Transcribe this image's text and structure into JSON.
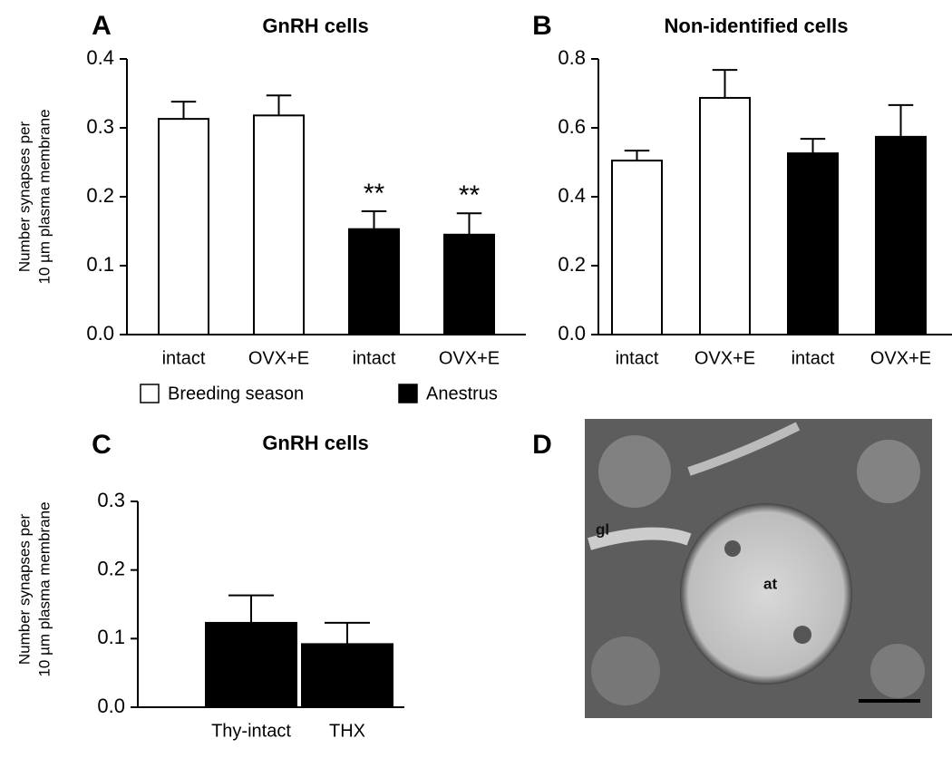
{
  "chart_data": [
    {
      "type": "bar",
      "panel_label": "A",
      "title": "GnRH cells",
      "y_label": [
        "Number synapses per",
        "10 µm plasma membrane"
      ],
      "categories": [
        "intact",
        "OVX+E",
        "intact",
        "OVX+E"
      ],
      "series": [
        {
          "name": "Breeding season",
          "color": "#ffffff",
          "values": [
            0.313,
            0.318,
            null,
            null
          ],
          "errors": [
            0.025,
            0.029,
            null,
            null
          ]
        },
        {
          "name": "Anestrus",
          "color": "#000000",
          "values": [
            null,
            null,
            0.153,
            0.145
          ],
          "errors": [
            null,
            null,
            0.026,
            0.031
          ],
          "annotations": [
            null,
            null,
            "**",
            "**"
          ]
        }
      ],
      "ylim": [
        0,
        0.4
      ],
      "yticks": [
        {
          "value": 0,
          "label": "0.0"
        },
        0.1,
        0.2,
        0.3,
        0.4
      ]
    },
    {
      "type": "bar",
      "panel_label": "B",
      "title": "Non-identified cells",
      "categories": [
        "intact",
        "OVX+E",
        "intact",
        "OVX+E"
      ],
      "series": [
        {
          "color": "#ffffff",
          "values": [
            0.505,
            0.687,
            null,
            null
          ],
          "errors": [
            0.029,
            0.081,
            null,
            null
          ]
        },
        {
          "color": "#000000",
          "values": [
            null,
            null,
            0.526,
            0.574
          ],
          "errors": [
            null,
            null,
            0.042,
            0.092
          ]
        }
      ],
      "ylim": [
        0,
        0.8
      ],
      "yticks": [
        {
          "value": 0,
          "label": "0.0"
        },
        0.2,
        0.4,
        0.6,
        0.8
      ]
    },
    {
      "type": "bar",
      "panel_label": "C",
      "title": "GnRH cells",
      "y_label": [
        "Number synapses per",
        "10 µm plasma membrane"
      ],
      "categories": [
        "Thy-intact",
        "THX"
      ],
      "series": [
        {
          "color": "#000000",
          "values": [
            0.123,
            0.092
          ],
          "errors": [
            0.04,
            0.031
          ]
        }
      ],
      "ylim": [
        0,
        0.3
      ],
      "yticks": [
        {
          "value": 0,
          "label": "0.0"
        },
        0.1,
        0.2,
        0.3
      ]
    }
  ],
  "image": {
    "panel_label": "D",
    "labels": [
      "gl",
      "at"
    ]
  }
}
